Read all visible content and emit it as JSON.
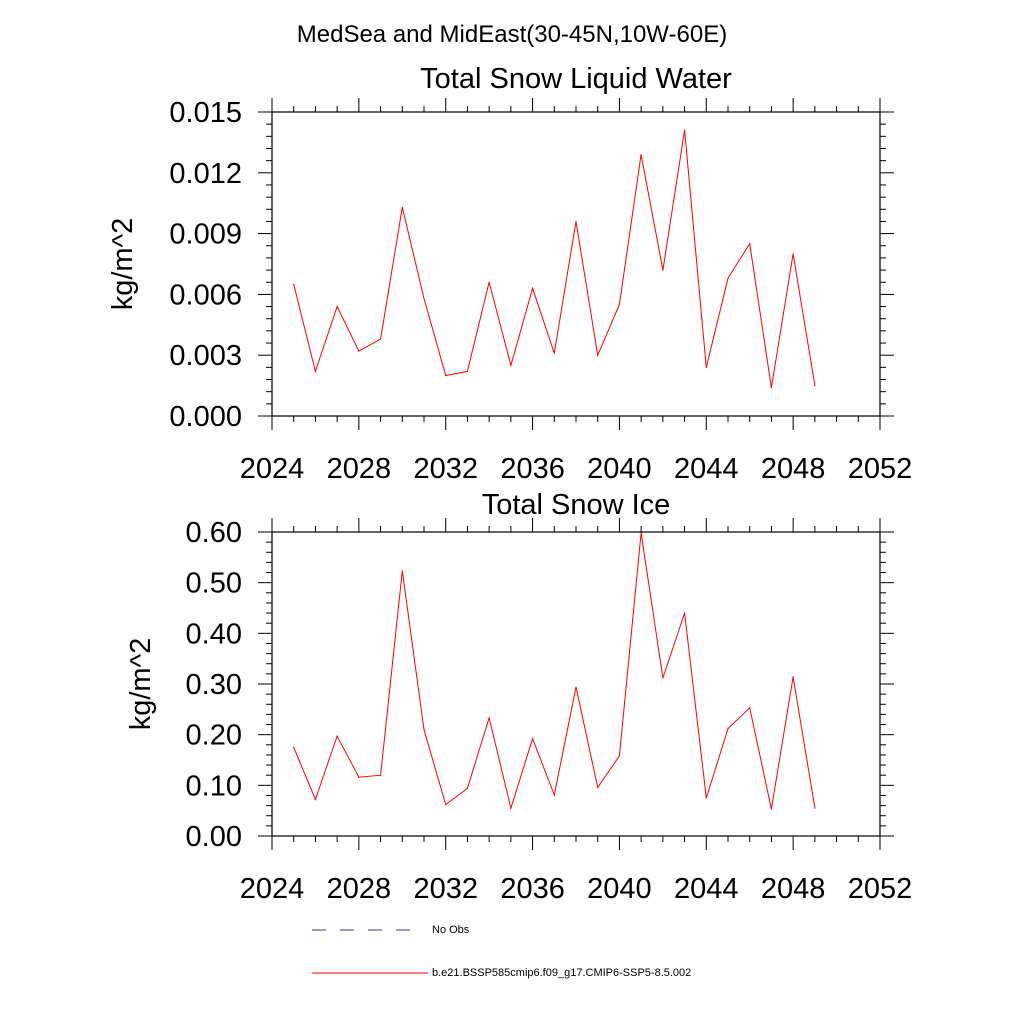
{
  "main_title": "MedSea and MidEast(30-45N,10W-60E)",
  "chart_data": [
    {
      "type": "line",
      "title": "Total Snow Liquid Water",
      "xlabel": "",
      "ylabel": "kg/m^2",
      "xlim": [
        2024,
        2052
      ],
      "ylim": [
        0,
        0.015
      ],
      "x_ticks": [
        2024,
        2028,
        2032,
        2036,
        2040,
        2044,
        2048,
        2052
      ],
      "x_tick_labels": [
        "2024",
        "2028",
        "2032",
        "2036",
        "2040",
        "2044",
        "2048",
        "2052"
      ],
      "y_ticks": [
        0,
        0.003,
        0.006,
        0.009,
        0.012,
        0.015
      ],
      "y_tick_labels": [
        "0.000",
        "0.003",
        "0.006",
        "0.009",
        "0.012",
        "0.015"
      ],
      "x": [
        2025,
        2026,
        2027,
        2028,
        2029,
        2030,
        2031,
        2032,
        2033,
        2034,
        2035,
        2036,
        2037,
        2038,
        2039,
        2040,
        2041,
        2042,
        2043,
        2044,
        2045,
        2046,
        2047,
        2048,
        2049
      ],
      "series": [
        {
          "name": "b.e21.BSSP585cmip6.f09_g17.CMIP6-SSP5-8.5.002",
          "color": "#ff0000",
          "values": [
            0.0065,
            0.0022,
            0.0054,
            0.0032,
            0.0038,
            0.0103,
            0.0058,
            0.002,
            0.0022,
            0.0066,
            0.0025,
            0.0063,
            0.0031,
            0.0096,
            0.003,
            0.0055,
            0.0129,
            0.0072,
            0.0141,
            0.0024,
            0.0068,
            0.0085,
            0.0014,
            0.008,
            0.0015
          ]
        }
      ]
    },
    {
      "type": "line",
      "title": "Total Snow Ice",
      "xlabel": "",
      "ylabel": "kg/m^2",
      "xlim": [
        2024,
        2052
      ],
      "ylim": [
        0,
        0.6
      ],
      "x_ticks": [
        2024,
        2028,
        2032,
        2036,
        2040,
        2044,
        2048,
        2052
      ],
      "x_tick_labels": [
        "2024",
        "2028",
        "2032",
        "2036",
        "2040",
        "2044",
        "2048",
        "2052"
      ],
      "y_ticks": [
        0,
        0.1,
        0.2,
        0.3,
        0.4,
        0.5,
        0.6
      ],
      "y_tick_labels": [
        "0.00",
        "0.10",
        "0.20",
        "0.30",
        "0.40",
        "0.50",
        "0.60"
      ],
      "x": [
        2025,
        2026,
        2027,
        2028,
        2029,
        2030,
        2031,
        2032,
        2033,
        2034,
        2035,
        2036,
        2037,
        2038,
        2039,
        2040,
        2041,
        2042,
        2043,
        2044,
        2045,
        2046,
        2047,
        2048,
        2049
      ],
      "series": [
        {
          "name": "b.e21.BSSP585cmip6.f09_g17.CMIP6-SSP5-8.5.002",
          "color": "#ff0000",
          "values": [
            0.175,
            0.072,
            0.197,
            0.116,
            0.12,
            0.523,
            0.21,
            0.062,
            0.094,
            0.233,
            0.055,
            0.192,
            0.081,
            0.294,
            0.096,
            0.158,
            0.598,
            0.312,
            0.44,
            0.075,
            0.212,
            0.253,
            0.053,
            0.314,
            0.055
          ]
        }
      ]
    }
  ],
  "legend": {
    "items": [
      {
        "label": "No Obs",
        "style": "dashed",
        "color": "#3a3a8c"
      },
      {
        "label": "b.e21.BSSP585cmip6.f09_g17.CMIP6-SSP5-8.5.002",
        "style": "solid",
        "color": "#ff0000"
      }
    ]
  }
}
